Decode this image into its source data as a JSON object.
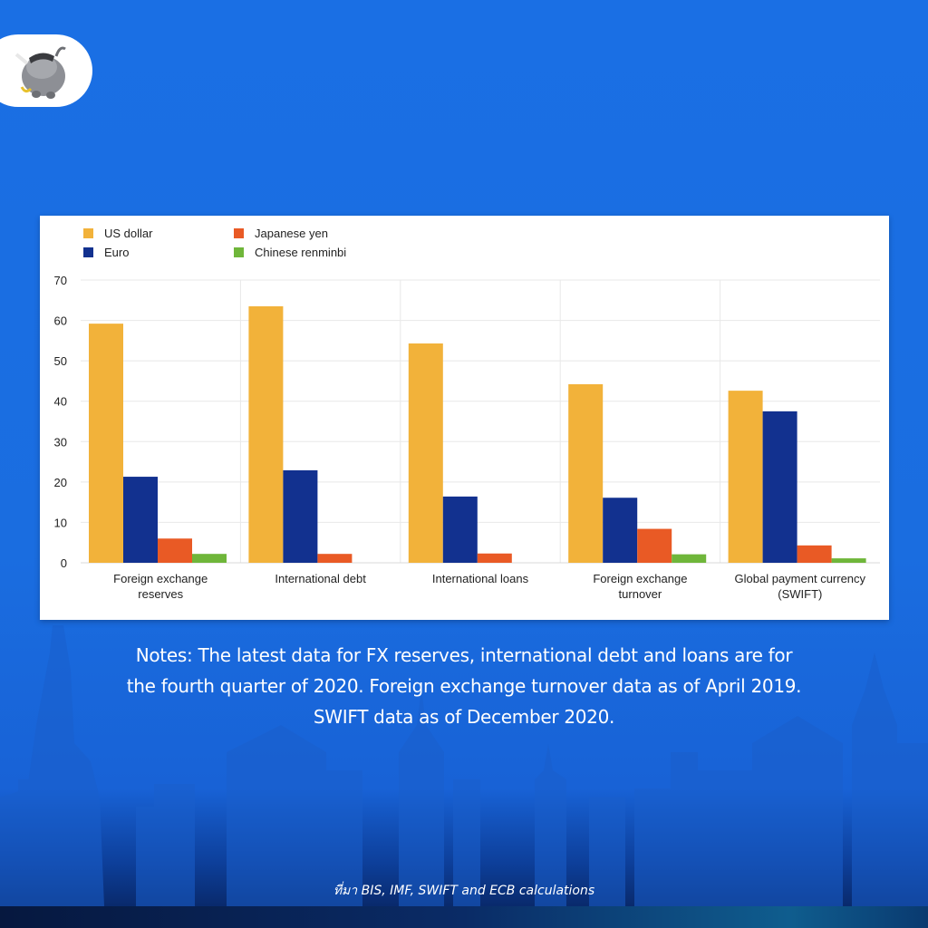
{
  "chart_data": {
    "type": "bar",
    "title": "",
    "xlabel": "",
    "ylabel": "",
    "ylim": [
      0,
      70
    ],
    "yticks": [
      0,
      10,
      20,
      30,
      40,
      50,
      60,
      70
    ],
    "grid": true,
    "legend_position": "top-left",
    "categories": [
      [
        "Foreign exchange",
        "reserves"
      ],
      [
        "International debt"
      ],
      [
        "International loans"
      ],
      [
        "Foreign exchange",
        "turnover"
      ],
      [
        "Global payment currency",
        "(SWIFT)"
      ]
    ],
    "series": [
      {
        "name": "US dollar",
        "color": "#f2b23a",
        "values": [
          59.2,
          63.5,
          54.3,
          44.2,
          42.6
        ]
      },
      {
        "name": "Euro",
        "color": "#12318f",
        "values": [
          21.3,
          22.9,
          16.4,
          16.1,
          37.5
        ]
      },
      {
        "name": "Japanese yen",
        "color": "#e95a25",
        "values": [
          6.0,
          2.2,
          2.3,
          8.4,
          4.3
        ]
      },
      {
        "name": "Chinese renminbi",
        "color": "#6fb63a",
        "values": [
          2.2,
          null,
          null,
          2.1,
          1.1
        ]
      }
    ]
  },
  "notes": {
    "lines": [
      "Notes: The latest data for FX reserves, international debt and loans are for",
      "the fourth quarter of 2020. Foreign exchange turnover data as of April 2019.",
      "SWIFT data as of December 2020."
    ]
  },
  "source": "ที่มา BIS, IMF, SWIFT and ECB calculations",
  "logo": {
    "icon": "bull-mascot-icon"
  }
}
